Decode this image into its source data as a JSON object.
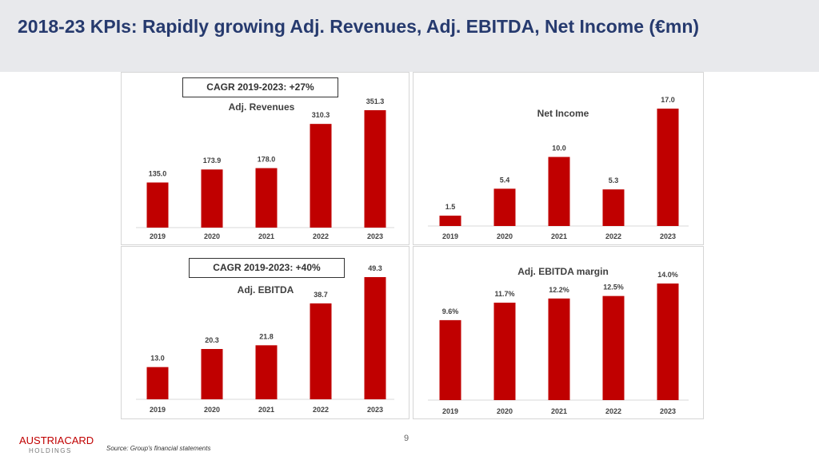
{
  "page": {
    "title": "2018-23 KPIs: Rapidly growing Adj. Revenues, Adj. EBITDA, Net Income (€mn)",
    "page_number": "9",
    "source": "Source: Group's financial statements",
    "logo_main": "AUSTRIACARD",
    "logo_sub": "HOLDINGS"
  },
  "colors": {
    "bar": "#c00000",
    "title": "#263a6e",
    "header_bg": "#e8e9ec"
  },
  "chart_data": [
    {
      "id": "adj-revenues",
      "type": "bar",
      "title": "Adj. Revenues",
      "annotation": "CAGR 2019-2023: +27%",
      "categories": [
        "2019",
        "2020",
        "2021",
        "2022",
        "2023"
      ],
      "values": [
        135.0,
        173.9,
        178.0,
        310.3,
        351.3
      ],
      "labels": [
        "135.0",
        "173.9",
        "178.0",
        "310.3",
        "351.3"
      ],
      "ylim": [
        0,
        351.3
      ]
    },
    {
      "id": "net-income",
      "type": "bar",
      "title": "Net Income",
      "categories": [
        "2019",
        "2020",
        "2021",
        "2022",
        "2023"
      ],
      "values": [
        1.5,
        5.4,
        10.0,
        5.3,
        17.0
      ],
      "labels": [
        "1.5",
        "5.4",
        "10.0",
        "5.3",
        "17.0"
      ],
      "ylim": [
        0,
        17.0
      ]
    },
    {
      "id": "adj-ebitda",
      "type": "bar",
      "title": "Adj. EBITDA",
      "annotation": "CAGR 2019-2023: +40%",
      "categories": [
        "2019",
        "2020",
        "2021",
        "2022",
        "2023"
      ],
      "values": [
        13.0,
        20.3,
        21.8,
        38.7,
        49.3
      ],
      "labels": [
        "13.0",
        "20.3",
        "21.8",
        "38.7",
        "49.3"
      ],
      "ylim": [
        0,
        49.3
      ]
    },
    {
      "id": "adj-ebitda-margin",
      "type": "bar",
      "title": "Adj. EBITDA margin",
      "categories": [
        "2019",
        "2020",
        "2021",
        "2022",
        "2023"
      ],
      "values": [
        9.6,
        11.7,
        12.2,
        12.5,
        14.0
      ],
      "labels": [
        "9.6%",
        "11.7%",
        "12.2%",
        "12.5%",
        "14.0%"
      ],
      "ylim": [
        0,
        14.0
      ]
    }
  ]
}
